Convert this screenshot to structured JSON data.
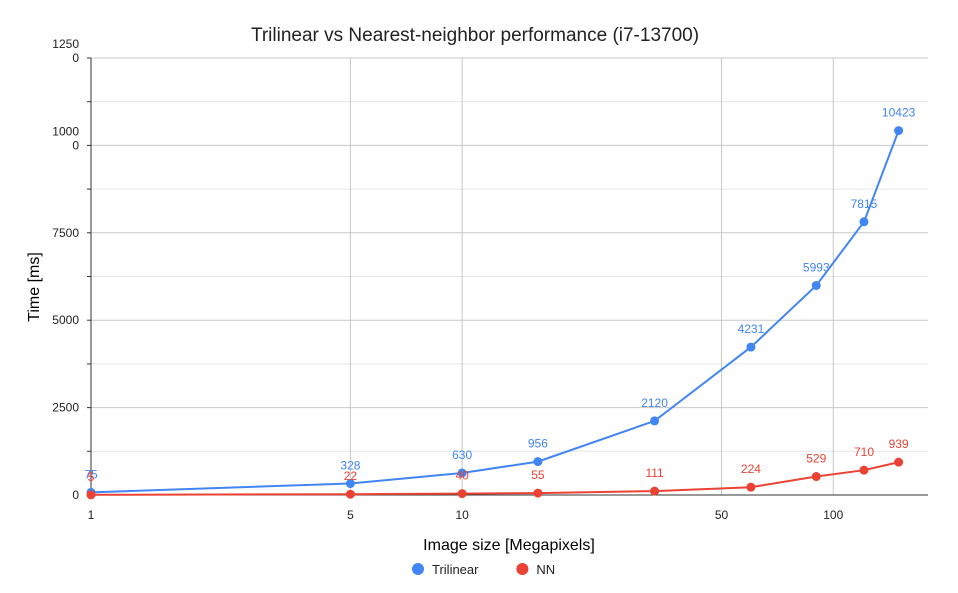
{
  "chart_data": {
    "type": "line",
    "title": "Trilinear vs Nearest-neighbor performance (i7-13700)",
    "xlabel": "Image size [Megapixels]",
    "ylabel": "Time [ms]",
    "x_scale": "log",
    "xlim": [
      1,
      180
    ],
    "ylim": [
      0,
      12500
    ],
    "x_ticks": [
      1,
      5,
      10,
      50,
      100
    ],
    "y_ticks": [
      {
        "value": 0,
        "label": "0"
      },
      {
        "value": 2500,
        "label": "2500"
      },
      {
        "value": 5000,
        "label": "5000"
      },
      {
        "value": 7500,
        "label": "7500"
      },
      {
        "value": 10000,
        "label": "1000\n0"
      },
      {
        "value": 12500,
        "label": "1250\n0"
      }
    ],
    "grid": true,
    "legend_position": "bottom",
    "x": [
      1,
      5,
      10,
      16,
      33,
      60,
      90,
      121,
      150
    ],
    "series": [
      {
        "name": "Trilinear",
        "color": "#4285f4",
        "values": [
          75,
          328,
          630,
          956,
          2120,
          4231,
          5993,
          7815,
          10423
        ],
        "labels": [
          "75",
          "328",
          "630",
          "956",
          "2120",
          "4231",
          "5993",
          "7815",
          "10423"
        ]
      },
      {
        "name": "NN",
        "color": "#ea4335",
        "values": [
          5,
          22,
          40,
          55,
          111,
          224,
          529,
          710,
          939
        ],
        "labels": [
          "5",
          "22",
          "40",
          "55",
          "111",
          "224",
          "529",
          "710",
          "939"
        ]
      }
    ]
  }
}
